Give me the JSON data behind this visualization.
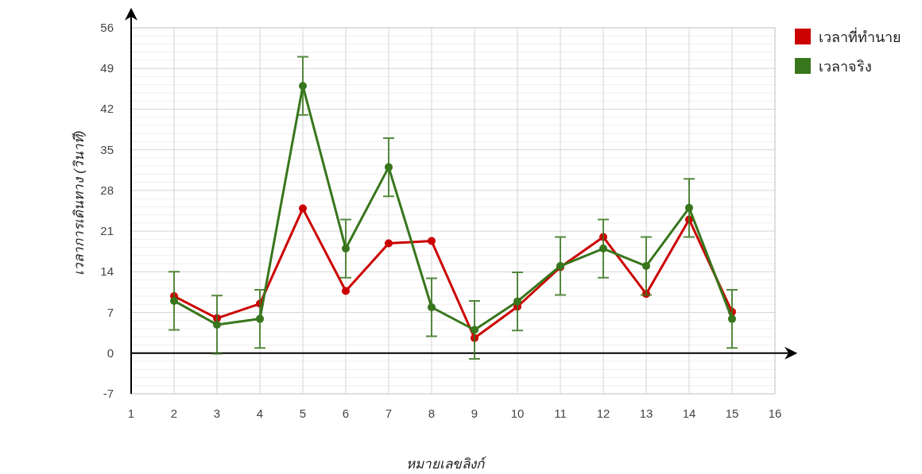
{
  "chart_data": {
    "type": "line",
    "xlabel": "หมายเลขลิงก์",
    "ylabel": "เวลาการเดินทาง (วินาที)",
    "x": [
      2,
      3,
      4,
      5,
      6,
      7,
      8,
      9,
      10,
      11,
      12,
      13,
      14,
      15
    ],
    "series": [
      {
        "name": "เวลาที่ทำนาย",
        "color": "#cc0000",
        "values": [
          9.8,
          6,
          8.5,
          24.9,
          10.7,
          18.9,
          19.3,
          2.6,
          8,
          14.8,
          20,
          10.2,
          23,
          7.1
        ]
      },
      {
        "name": "เวลาจริง",
        "color": "#38761d",
        "values": [
          9,
          4.9,
          5.9,
          46,
          18,
          32,
          7.9,
          4,
          8.9,
          15,
          18,
          15,
          25,
          5.9
        ],
        "errors": [
          5,
          5,
          5,
          5,
          5,
          5,
          5,
          5,
          5,
          5,
          5,
          5,
          5,
          5
        ]
      }
    ],
    "xlim": [
      1,
      16
    ],
    "xticks": [
      1,
      2,
      3,
      4,
      5,
      6,
      7,
      8,
      9,
      10,
      11,
      12,
      13,
      14,
      15,
      16
    ],
    "ylim": [
      -7,
      56
    ],
    "yticks": [
      -7,
      0,
      7,
      14,
      21,
      28,
      35,
      42,
      49,
      56
    ],
    "grid": true,
    "legend": "top right",
    "marker": "circle",
    "line_style": "solid"
  }
}
